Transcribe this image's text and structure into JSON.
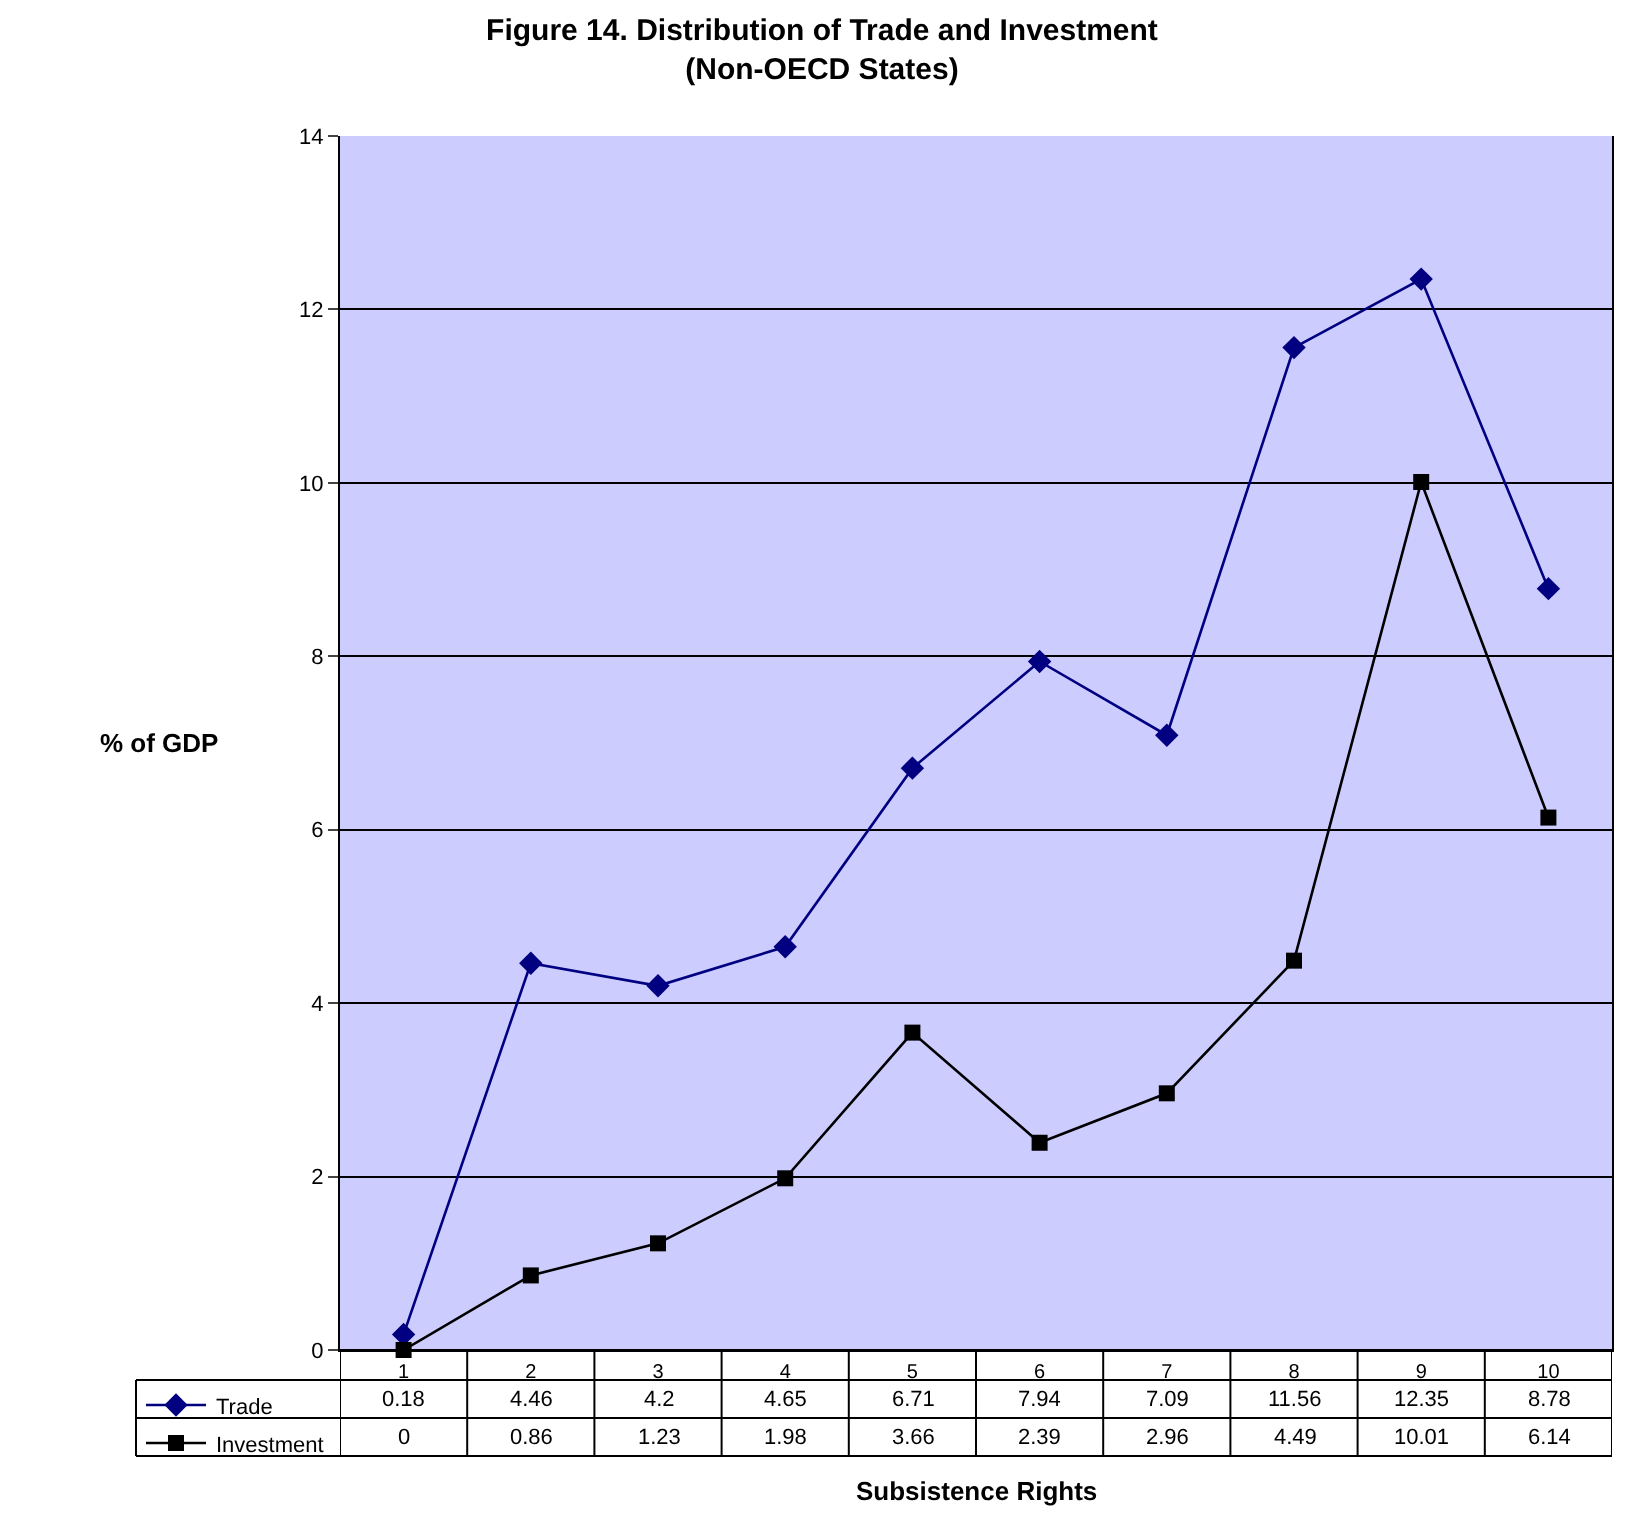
{
  "chart_data": {
    "type": "line",
    "title": "Figure 14. Distribution of Trade and Investment\n(Non-OECD States)",
    "xlabel": "Subsistence Rights",
    "ylabel": "% of GDP",
    "categories": [
      "1",
      "2",
      "3",
      "4",
      "5",
      "6",
      "7",
      "8",
      "9",
      "10"
    ],
    "series": [
      {
        "name": "Trade",
        "color": "#000080",
        "marker": "diamond",
        "values": [
          0.18,
          4.46,
          4.2,
          4.65,
          6.71,
          7.94,
          7.09,
          11.56,
          12.35,
          8.78
        ]
      },
      {
        "name": "Investment",
        "color": "#000000",
        "marker": "square",
        "values": [
          0,
          0.86,
          1.23,
          1.98,
          3.66,
          2.39,
          2.96,
          4.49,
          10.01,
          6.14
        ]
      }
    ],
    "ylim": [
      0,
      14
    ],
    "yticks": [
      0,
      2,
      4,
      6,
      8,
      10,
      12,
      14
    ],
    "grid": "y",
    "legend": "bottom left",
    "data_labels": true,
    "line_style": "solid"
  }
}
